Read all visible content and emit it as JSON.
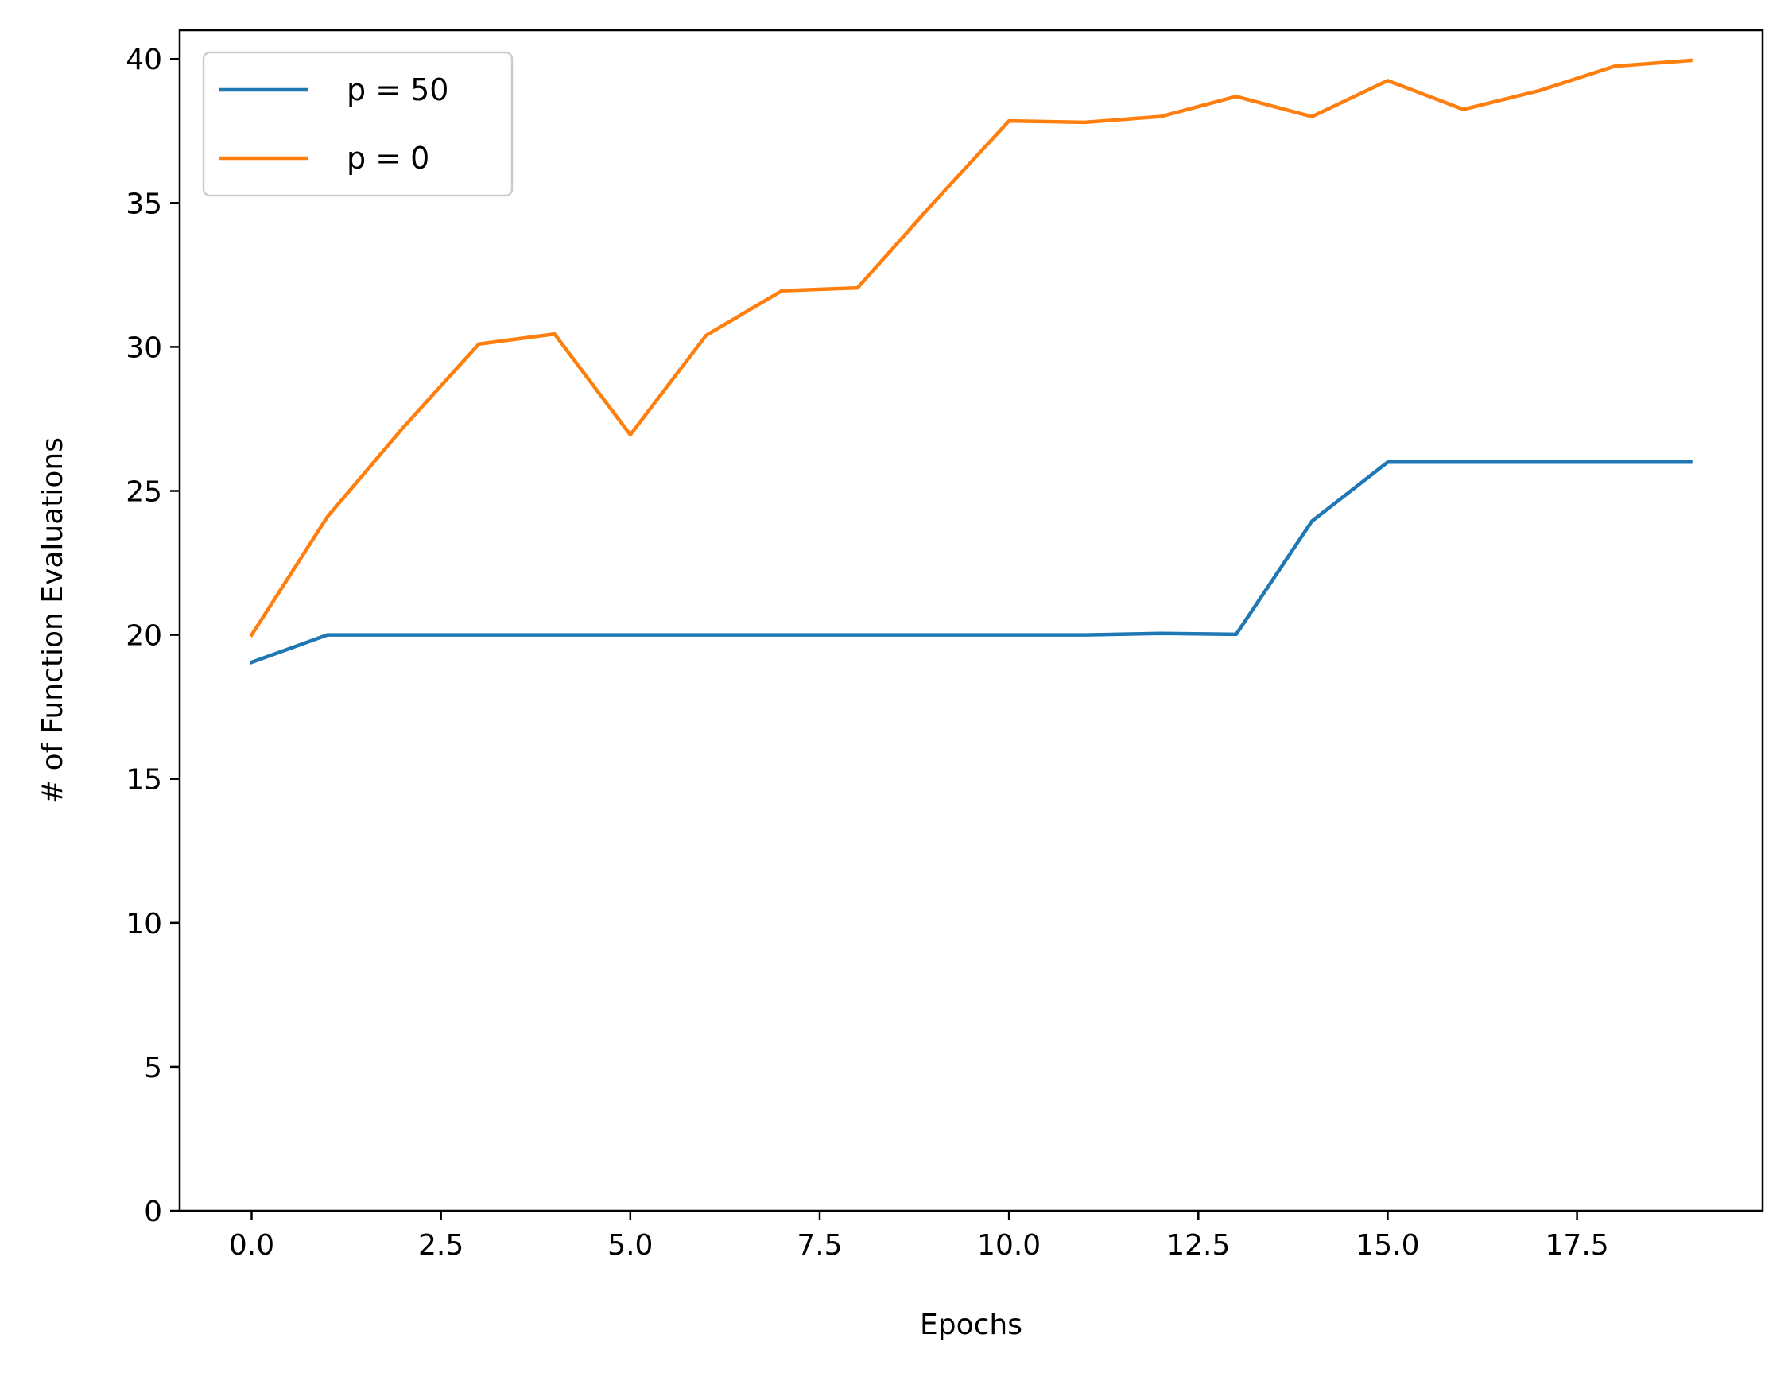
{
  "chart_data": {
    "type": "line",
    "xlabel": "Epochs",
    "ylabel": "# of Function Evaluations",
    "xlim": [
      -0.95,
      19.95
    ],
    "ylim": [
      0,
      41
    ],
    "xticks": [
      0.0,
      2.5,
      5.0,
      7.5,
      10.0,
      12.5,
      15.0,
      17.5
    ],
    "xtick_labels": [
      "0.0",
      "2.5",
      "5.0",
      "7.5",
      "10.0",
      "12.5",
      "15.0",
      "17.5"
    ],
    "yticks": [
      0,
      5,
      10,
      15,
      20,
      25,
      30,
      35,
      40
    ],
    "ytick_labels": [
      "0",
      "5",
      "10",
      "15",
      "20",
      "25",
      "30",
      "35",
      "40"
    ],
    "grid": false,
    "legend_position": "top-left",
    "x": [
      0,
      1,
      2,
      3,
      4,
      5,
      6,
      7,
      8,
      9,
      10,
      11,
      12,
      13,
      14,
      15,
      16,
      17,
      18,
      19
    ],
    "series": [
      {
        "name": "p = 50",
        "color": "#1f77b4",
        "values": [
          19.05,
          20.0,
          20.0,
          20.0,
          20.0,
          20.0,
          20.0,
          20.0,
          20.0,
          20.0,
          20.0,
          20.0,
          20.05,
          20.02,
          23.95,
          26.0,
          26.0,
          26.0,
          26.0,
          26.0
        ]
      },
      {
        "name": "p = 0",
        "color": "#ff7f0e",
        "values": [
          20.0,
          24.1,
          27.2,
          30.1,
          30.45,
          26.95,
          30.4,
          31.95,
          32.05,
          35.0,
          37.85,
          37.8,
          38.0,
          38.7,
          38.0,
          39.25,
          38.25,
          38.9,
          39.75,
          39.95
        ]
      }
    ]
  }
}
